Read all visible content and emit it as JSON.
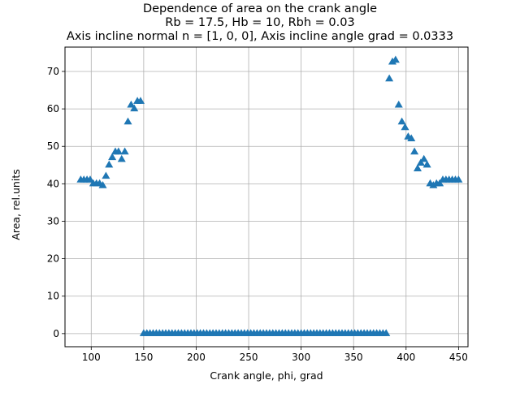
{
  "chart_data": {
    "type": "scatter",
    "title_lines": [
      "Dependence of area on the crank angle",
      "Rb = 17.5, Hb = 10, Rbh = 0.03",
      "Axis incline normal n = [1, 0, 0], Axis incline angle grad = 0.0333"
    ],
    "xlabel": "Crank angle, phi, grad",
    "ylabel": "Area, rel.units",
    "xlim": [
      75,
      459
    ],
    "ylim": [
      -3.5,
      76.5
    ],
    "xticks": [
      100,
      150,
      200,
      250,
      300,
      350,
      400,
      450
    ],
    "yticks": [
      0,
      10,
      20,
      30,
      40,
      50,
      60,
      70
    ],
    "grid": true,
    "marker": "triangle-up",
    "color": "#1f77b4",
    "series": [
      {
        "x": [
          90,
          93,
          96,
          99,
          102,
          105,
          108,
          111,
          114,
          117,
          120,
          123,
          126,
          129,
          132,
          135,
          138,
          141,
          144,
          147,
          150,
          153,
          156,
          159,
          162,
          165,
          168,
          171,
          174,
          177,
          180,
          183,
          186,
          189,
          192,
          195,
          198,
          201,
          204,
          207,
          210,
          213,
          216,
          219,
          222,
          225,
          228,
          231,
          234,
          237,
          240,
          243,
          246,
          249,
          252,
          255,
          258,
          261,
          264,
          267,
          270,
          273,
          276,
          279,
          282,
          285,
          288,
          291,
          294,
          297,
          300,
          303,
          306,
          309,
          312,
          315,
          318,
          321,
          324,
          327,
          330,
          333,
          336,
          339,
          342,
          345,
          348,
          351,
          354,
          357,
          360,
          363,
          366,
          369,
          372,
          375,
          378,
          381,
          384,
          387,
          390,
          393,
          396,
          399,
          402,
          405,
          408,
          411,
          414,
          417,
          420,
          423,
          426,
          429,
          432,
          435,
          438,
          441,
          444,
          447,
          450
        ],
        "y": [
          41,
          41,
          41,
          41,
          40,
          40,
          40,
          39.5,
          42,
          45,
          47,
          48.5,
          48.5,
          46.5,
          48.5,
          56.5,
          61,
          60,
          62,
          62,
          0,
          0,
          0,
          0,
          0,
          0,
          0,
          0,
          0,
          0,
          0,
          0,
          0,
          0,
          0,
          0,
          0,
          0,
          0,
          0,
          0,
          0,
          0,
          0,
          0,
          0,
          0,
          0,
          0,
          0,
          0,
          0,
          0,
          0,
          0,
          0,
          0,
          0,
          0,
          0,
          0,
          0,
          0,
          0,
          0,
          0,
          0,
          0,
          0,
          0,
          0,
          0,
          0,
          0,
          0,
          0,
          0,
          0,
          0,
          0,
          0,
          0,
          0,
          0,
          0,
          0,
          0,
          0,
          0,
          0,
          0,
          0,
          0,
          0,
          0,
          0,
          0,
          0,
          68,
          72.5,
          73,
          61,
          56.5,
          55,
          52.5,
          52,
          48.5,
          44,
          45.5,
          46.5,
          45,
          40,
          39.5,
          40,
          40,
          41,
          41,
          41,
          41,
          41,
          41
        ]
      }
    ]
  }
}
